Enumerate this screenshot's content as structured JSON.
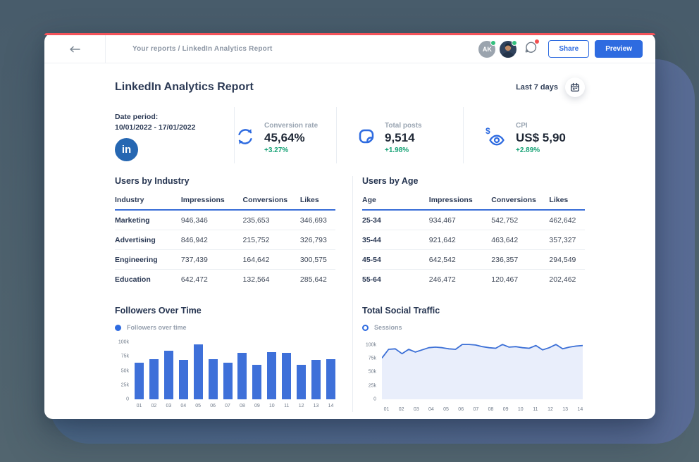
{
  "topbar": {
    "breadcrumb": "Your reports / LinkedIn Analytics Report",
    "avatar_initials": "AK",
    "share_label": "Share",
    "preview_label": "Preview"
  },
  "header": {
    "title": "LinkedIn Analytics Report",
    "date_range_label": "Last 7 days"
  },
  "kpis": {
    "date_period": {
      "label": "Date period:",
      "value": "10/01/2022 - 17/01/2022",
      "platform_icon": "linkedin",
      "platform_abbr": "in"
    },
    "items": [
      {
        "label": "Conversion rate",
        "value": "45,64%",
        "delta": "+3.27%",
        "icon": "sync-icon"
      },
      {
        "label": "Total posts",
        "value": "9,514",
        "delta": "+1.98%",
        "icon": "post-icon"
      },
      {
        "label": "CPI",
        "value": "US$ 5,90",
        "delta": "+2.89%",
        "icon": "cost-per-impression-icon"
      }
    ]
  },
  "tables": [
    {
      "title": "Users by Industry",
      "columns": [
        "Industry",
        "Impressions",
        "Conversions",
        "Likes"
      ],
      "rows": [
        [
          "Marketing",
          "946,346",
          "235,653",
          "346,693"
        ],
        [
          "Advertising",
          "846,942",
          "215,752",
          "326,793"
        ],
        [
          "Engineering",
          "737,439",
          "164,642",
          "300,575"
        ],
        [
          "Education",
          "642,472",
          "132,564",
          "285,642"
        ]
      ]
    },
    {
      "title": "Users by Age",
      "columns": [
        "Age",
        "Impressions",
        "Conversions",
        "Likes"
      ],
      "rows": [
        [
          "25-34",
          "934,467",
          "542,752",
          "462,642"
        ],
        [
          "35-44",
          "921,642",
          "463,642",
          "357,327"
        ],
        [
          "45-54",
          "642,542",
          "236,357",
          "294,549"
        ],
        [
          "55-64",
          "246,472",
          "120,467",
          "202,462"
        ]
      ]
    }
  ],
  "chart_data": [
    {
      "type": "bar",
      "title": "Followers Over Time",
      "legend": "Followers over time",
      "legend_marker": "filled-dot",
      "categories": [
        "01",
        "02",
        "03",
        "04",
        "05",
        "06",
        "07",
        "08",
        "09",
        "10",
        "11",
        "12",
        "13",
        "14"
      ],
      "values": [
        64,
        71,
        85,
        69,
        96,
        71,
        64,
        82,
        60,
        83,
        82,
        60,
        69,
        71
      ],
      "unit": "k",
      "ylim": [
        0,
        100
      ],
      "ytick_values": [
        100,
        75,
        50,
        25,
        0
      ],
      "ytick_labels": [
        "100k",
        "75k",
        "50k",
        "25k",
        "0"
      ],
      "bar_color": "#3e70d9",
      "grid": false,
      "legend_position": "top-left"
    },
    {
      "type": "area",
      "title": "Total Social Traffic",
      "legend": "Sessions",
      "legend_marker": "ring",
      "categories": [
        "01",
        "02",
        "03",
        "04",
        "05",
        "06",
        "07",
        "08",
        "09",
        "10",
        "11",
        "12",
        "13",
        "14"
      ],
      "values": [
        76,
        92,
        93,
        84,
        92,
        87,
        91,
        95,
        96,
        95,
        93,
        92,
        101,
        101,
        100,
        97,
        95,
        94,
        101,
        96,
        97,
        95,
        94,
        99,
        91,
        95,
        101,
        93,
        96,
        98,
        99
      ],
      "unit": "k",
      "ylim": [
        0,
        105
      ],
      "ytick_values": [
        100,
        75,
        50,
        25,
        0
      ],
      "ytick_labels": [
        "100k",
        "75k",
        "50k",
        "25k",
        "0"
      ],
      "line_color": "#3b6fd6",
      "fill_color": "#e9eefb",
      "grid": false,
      "legend_position": "top-left"
    }
  ],
  "colors": {
    "accent_blue": "#2e6be0",
    "chart_blue": "#3e70d9",
    "positive_green": "#17a276",
    "top_stripe_red": "#f4535a",
    "linkedin_blue": "#2667b2"
  }
}
